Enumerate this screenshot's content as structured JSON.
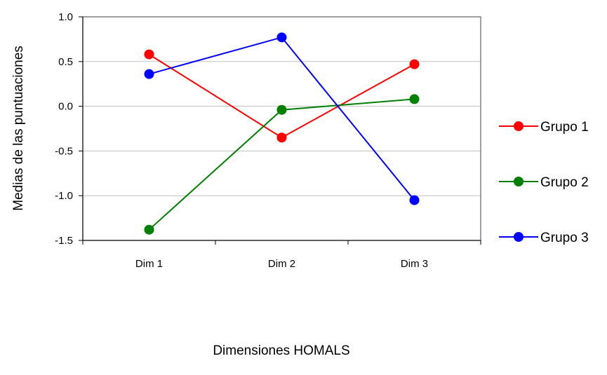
{
  "chart_data": {
    "type": "line",
    "categories": [
      "Dim 1",
      "Dim 2",
      "Dim 3"
    ],
    "series": [
      {
        "name": "Grupo 1",
        "color": "#ff0000",
        "values": [
          0.58,
          -0.35,
          0.47
        ]
      },
      {
        "name": "Grupo 2",
        "color": "#008000",
        "values": [
          -1.38,
          -0.04,
          0.08
        ]
      },
      {
        "name": "Grupo 3",
        "color": "#0000ff",
        "values": [
          0.36,
          0.77,
          -1.05
        ]
      }
    ],
    "yticks": [
      "1.0",
      "0.5",
      "0.0",
      "-0.5",
      "-1.0",
      "-1.5"
    ],
    "ytick_values": [
      1.0,
      0.5,
      0.0,
      -0.5,
      -1.0,
      -1.5
    ],
    "xlabel": "Dimensiones HOMALS",
    "ylabel": "Medias de las puntuaciones",
    "ylim": [
      -1.5,
      1.0
    ],
    "grid": true,
    "legend_position": "right"
  }
}
